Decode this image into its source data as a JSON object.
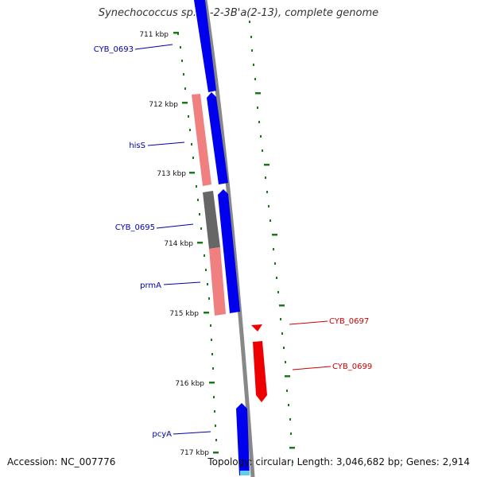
{
  "title": "Synechococcus sp. JA-2-3B'a(2-13), complete genome",
  "footer": {
    "accession": "Accession: NC_007776",
    "summary": "Topology: circular; Length: 3,046,682 bp; Genes: 2,914"
  },
  "colors": {
    "forward_gene": "#0000ee",
    "reverse_gene": "#ee0000",
    "pink_feature": "#f08080",
    "gray_feature": "#666666",
    "backbone": "#888888",
    "ticks": "#1a7a1a",
    "label_blue": "#0000aa",
    "label_red": "#cc0000"
  },
  "kbp_labels": [
    "711 kbp",
    "712 kbp",
    "713 kbp",
    "714 kbp",
    "715 kbp",
    "716 kbp",
    "717 kbp"
  ],
  "genes_left": [
    "CYB_0693",
    "hisS",
    "CYB_0695",
    "prmA",
    "pcyA"
  ],
  "genes_right": [
    "CYB_0697",
    "CYB_0699"
  ]
}
